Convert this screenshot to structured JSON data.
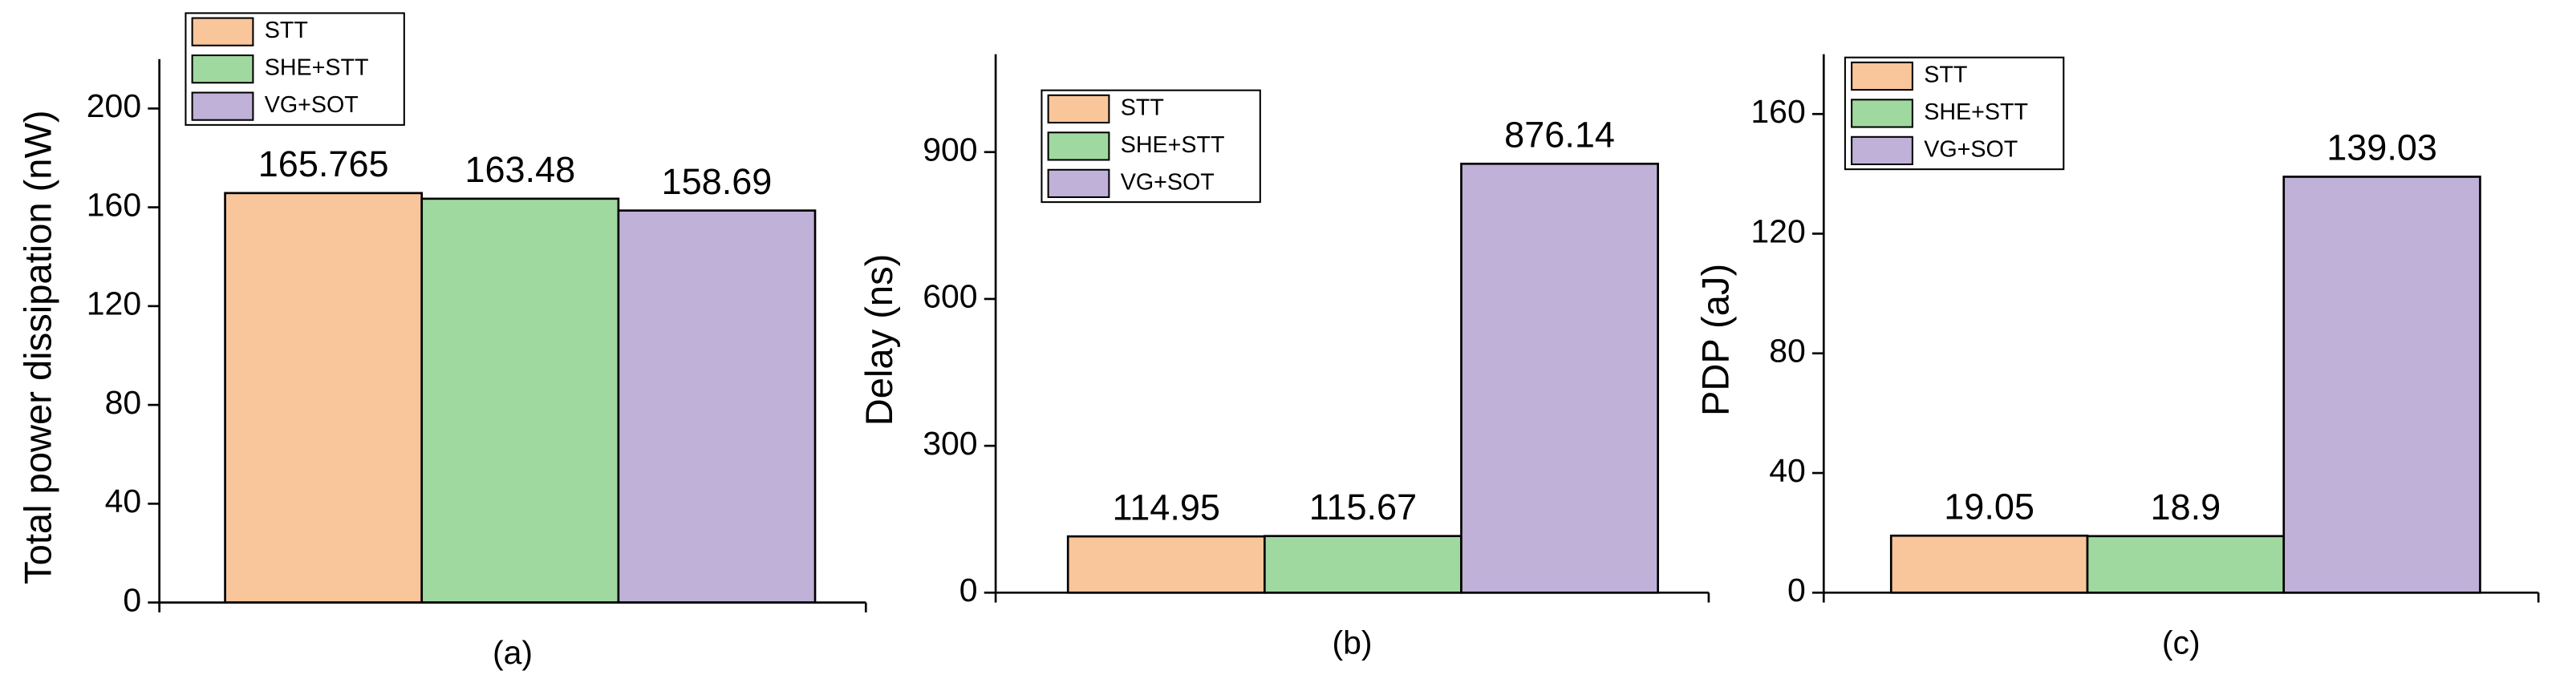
{
  "chart_data": [
    {
      "type": "bar",
      "ylabel": "Total power dissipation (nW)",
      "xlabel": "(a)",
      "legend": "upper left",
      "ylim": [
        0,
        220
      ],
      "yticks": [
        0,
        40,
        80,
        120,
        160,
        200
      ],
      "series": [
        {
          "name": "STT",
          "color": "#f9c59a",
          "values": [
            165.765
          ]
        },
        {
          "name": "SHE+STT",
          "color": "#a0d9a0",
          "values": [
            163.48
          ]
        },
        {
          "name": "VG+SOT",
          "color": "#c0b1d8",
          "values": [
            158.69
          ]
        }
      ]
    },
    {
      "type": "bar",
      "ylabel": "Delay (ns)",
      "xlabel": "(b)",
      "legend": "upper left",
      "ylim": [
        0,
        1100
      ],
      "yticks": [
        0,
        300,
        600,
        900
      ],
      "series": [
        {
          "name": "STT",
          "color": "#f9c59a",
          "values": [
            114.95
          ]
        },
        {
          "name": "SHE+STT",
          "color": "#a0d9a0",
          "values": [
            115.67
          ]
        },
        {
          "name": "VG+SOT",
          "color": "#c0b1d8",
          "values": [
            876.14
          ]
        }
      ]
    },
    {
      "type": "bar",
      "ylabel": "PDP (aJ)",
      "xlabel": "(c)",
      "legend": "upper left",
      "ylim": [
        0,
        180
      ],
      "yticks": [
        0,
        40,
        80,
        120,
        160
      ],
      "series": [
        {
          "name": "STT",
          "color": "#f9c59a",
          "values": [
            19.05
          ]
        },
        {
          "name": "SHE+STT",
          "color": "#a0d9a0",
          "values": [
            18.9
          ]
        },
        {
          "name": "VG+SOT",
          "color": "#c0b1d8",
          "values": [
            139.03
          ]
        }
      ]
    }
  ]
}
